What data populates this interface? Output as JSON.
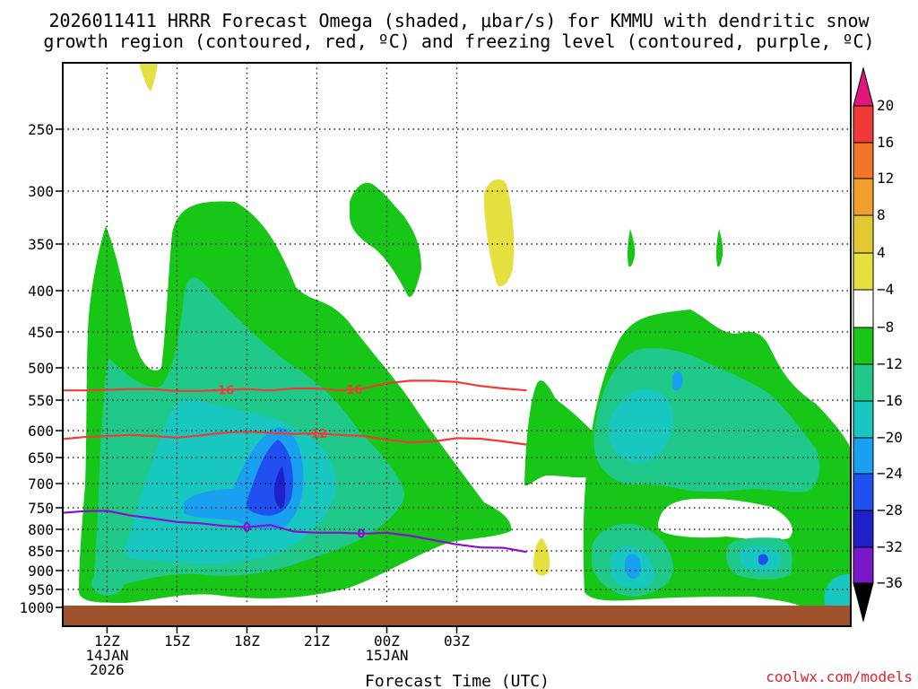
{
  "chart_data": {
    "type": "time-height contour",
    "title_line1": "2026011411 HRRR Forecast Omega (shaded, μbar/s) for KMMU with dendritic snow",
    "title_line2": "growth region (contoured, red, ºC) and freezing level (contoured, purple, ºC)",
    "xlabel": "Forecast Time (UTC)",
    "credit": "coolwx.com/models",
    "y_axis": {
      "unit": "hPa",
      "range": [
        200,
        1000
      ],
      "ticks": [
        250,
        300,
        350,
        400,
        450,
        500,
        550,
        600,
        650,
        700,
        750,
        800,
        850,
        900,
        950,
        1000
      ]
    },
    "x_axis": {
      "range_hours": [
        -0.9,
        32.9
      ],
      "ticks": [
        {
          "hour": 1,
          "label": "12Z",
          "sub1": "14JAN",
          "sub2": "2026"
        },
        {
          "hour": 4,
          "label": "15Z",
          "sub1": "",
          "sub2": ""
        },
        {
          "hour": 7,
          "label": "18Z",
          "sub1": "",
          "sub2": ""
        },
        {
          "hour": 10,
          "label": "21Z",
          "sub1": "",
          "sub2": ""
        },
        {
          "hour": 13,
          "label": "00Z",
          "sub1": "15JAN",
          "sub2": ""
        },
        {
          "hour": 16,
          "label": "03Z",
          "sub1": "",
          "sub2": ""
        }
      ]
    },
    "colorbar": {
      "labels": [
        "20",
        "16",
        "12",
        "8",
        "4",
        "−4",
        "−8",
        "−12",
        "−16",
        "−20",
        "−24",
        "−28",
        "−32",
        "−36"
      ],
      "colors": [
        "#e2157a",
        "#f03a3a",
        "#f4752a",
        "#f0a02a",
        "#e3c832",
        "#e4e040",
        "#ffffff",
        "#17c617",
        "#20c88a",
        "#18c8c0",
        "#1aa0f0",
        "#2050f0",
        "#2020c8",
        "#7818c8",
        "#a010c8",
        "#a8a8a8",
        "#000000"
      ]
    },
    "dendritic_contours": [
      {
        "label": "-16",
        "hours": [
          -1,
          0,
          1,
          2,
          3,
          4,
          5,
          6,
          7,
          8,
          9,
          10,
          11,
          12,
          13,
          14,
          15,
          16,
          17,
          18,
          19
        ],
        "hpa": [
          535,
          535,
          534,
          533,
          533,
          536,
          536,
          534,
          533,
          535,
          532,
          532,
          535,
          532,
          524,
          520,
          520,
          522,
          528,
          532,
          535
        ]
      },
      {
        "label": "-12",
        "hours": [
          -1,
          0,
          1,
          2,
          3,
          4,
          5,
          6,
          7,
          8,
          9,
          10,
          11,
          12,
          13,
          14,
          15,
          16,
          17,
          18,
          19
        ],
        "hpa": [
          616,
          612,
          610,
          608,
          610,
          613,
          609,
          604,
          602,
          604,
          606,
          605,
          608,
          610,
          617,
          622,
          620,
          614,
          615,
          620,
          626
        ]
      }
    ],
    "freezing_contour": {
      "label": "0",
      "hours": [
        -1,
        0,
        1,
        2,
        3,
        4,
        5,
        6,
        7,
        8,
        9,
        10,
        11,
        12,
        13,
        14,
        15,
        16,
        17,
        18,
        19
      ],
      "hpa": [
        762,
        758,
        757,
        768,
        775,
        783,
        786,
        792,
        795,
        790,
        805,
        808,
        808,
        810,
        808,
        815,
        825,
        835,
        842,
        843,
        853
      ]
    },
    "omega_regions": [
      {
        "level": "-4",
        "color": "#17c617"
      },
      {
        "level": "-8",
        "color": "#20c88a"
      },
      {
        "level": "-12",
        "color": "#18c8c0"
      },
      {
        "level": "-16",
        "color": "#1aa0f0"
      },
      {
        "level": "-20",
        "color": "#2050f0"
      },
      {
        "level": "-24",
        "color": "#7818c8"
      },
      {
        "level": "4",
        "color": "#e4e040"
      }
    ]
  }
}
